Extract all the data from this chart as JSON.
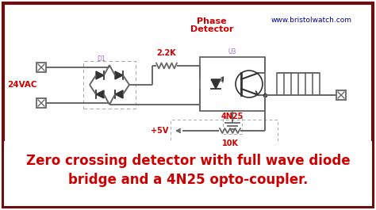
{
  "bg_color": "#ffffff",
  "border_color": "#6b1010",
  "circuit_bg": "#ffffff",
  "wire_color": "#666666",
  "dark_color": "#333333",
  "red_color": "#cc0000",
  "purple_color": "#9966cc",
  "blue_color": "#000099",
  "title_line1": "Zero crossing detector with full wave diode",
  "title_line2": "bridge and a 4N25 opto-coupler.",
  "url_text": "www.bristolwatch.com",
  "phase_label": "Phase",
  "detector_label": "Detector",
  "label_24vac": "24VAC",
  "label_d1": "D1",
  "label_22k": "2.2K",
  "label_u3": "U3",
  "label_4n25": "4N25",
  "label_5v": "+5V",
  "label_10k": "10K",
  "title_fontsize": 13,
  "url_fontsize": 8
}
